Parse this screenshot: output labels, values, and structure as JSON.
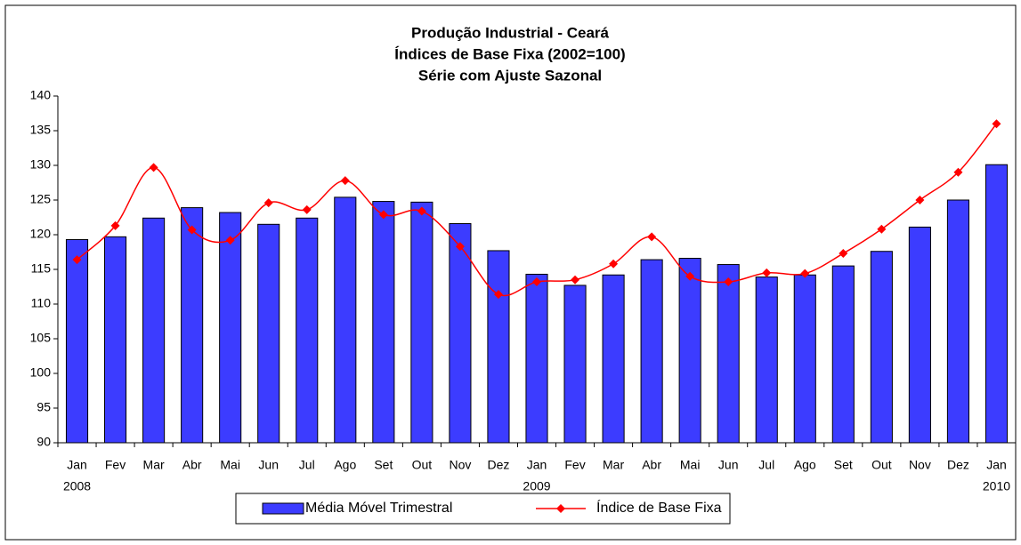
{
  "chart_data": {
    "type": "bar_line",
    "title": [
      "Produção Industrial - Ceará",
      "Índices de Base Fixa (2002=100)",
      "Série com Ajuste Sazonal"
    ],
    "categories": [
      "Jan",
      "Fev",
      "Mar",
      "Abr",
      "Mai",
      "Jun",
      "Jul",
      "Ago",
      "Set",
      "Out",
      "Nov",
      "Dez",
      "Jan",
      "Fev",
      "Mar",
      "Abr",
      "Mai",
      "Jun",
      "Jul",
      "Ago",
      "Set",
      "Out",
      "Nov",
      "Dez",
      "Jan"
    ],
    "category_years": [
      "2008",
      null,
      null,
      null,
      null,
      null,
      null,
      null,
      null,
      null,
      null,
      null,
      "2009",
      null,
      null,
      null,
      null,
      null,
      null,
      null,
      null,
      null,
      null,
      null,
      "2010"
    ],
    "series": [
      {
        "name": "Média Móvel Trimestral",
        "type": "bar",
        "color": "#3c3cff",
        "values": [
          119.3,
          119.7,
          122.4,
          123.9,
          123.2,
          121.5,
          122.4,
          125.4,
          124.8,
          124.7,
          121.6,
          117.7,
          114.3,
          112.7,
          114.2,
          116.4,
          116.6,
          115.7,
          113.9,
          114.2,
          115.5,
          117.6,
          121.1,
          125.0,
          130.1
        ]
      },
      {
        "name": "Índice de Base Fixa",
        "type": "line",
        "color": "#ff0000",
        "values": [
          116.4,
          121.3,
          129.7,
          120.7,
          119.2,
          124.6,
          123.6,
          127.8,
          122.9,
          123.4,
          118.3,
          111.4,
          113.2,
          113.5,
          115.8,
          119.7,
          114.0,
          113.2,
          114.5,
          114.4,
          117.3,
          120.8,
          125.0,
          129.0,
          136.0
        ]
      }
    ],
    "ylim": [
      90,
      140
    ],
    "yticks": [
      90,
      95,
      100,
      105,
      110,
      115,
      120,
      125,
      130,
      135,
      140
    ],
    "grid": false
  }
}
